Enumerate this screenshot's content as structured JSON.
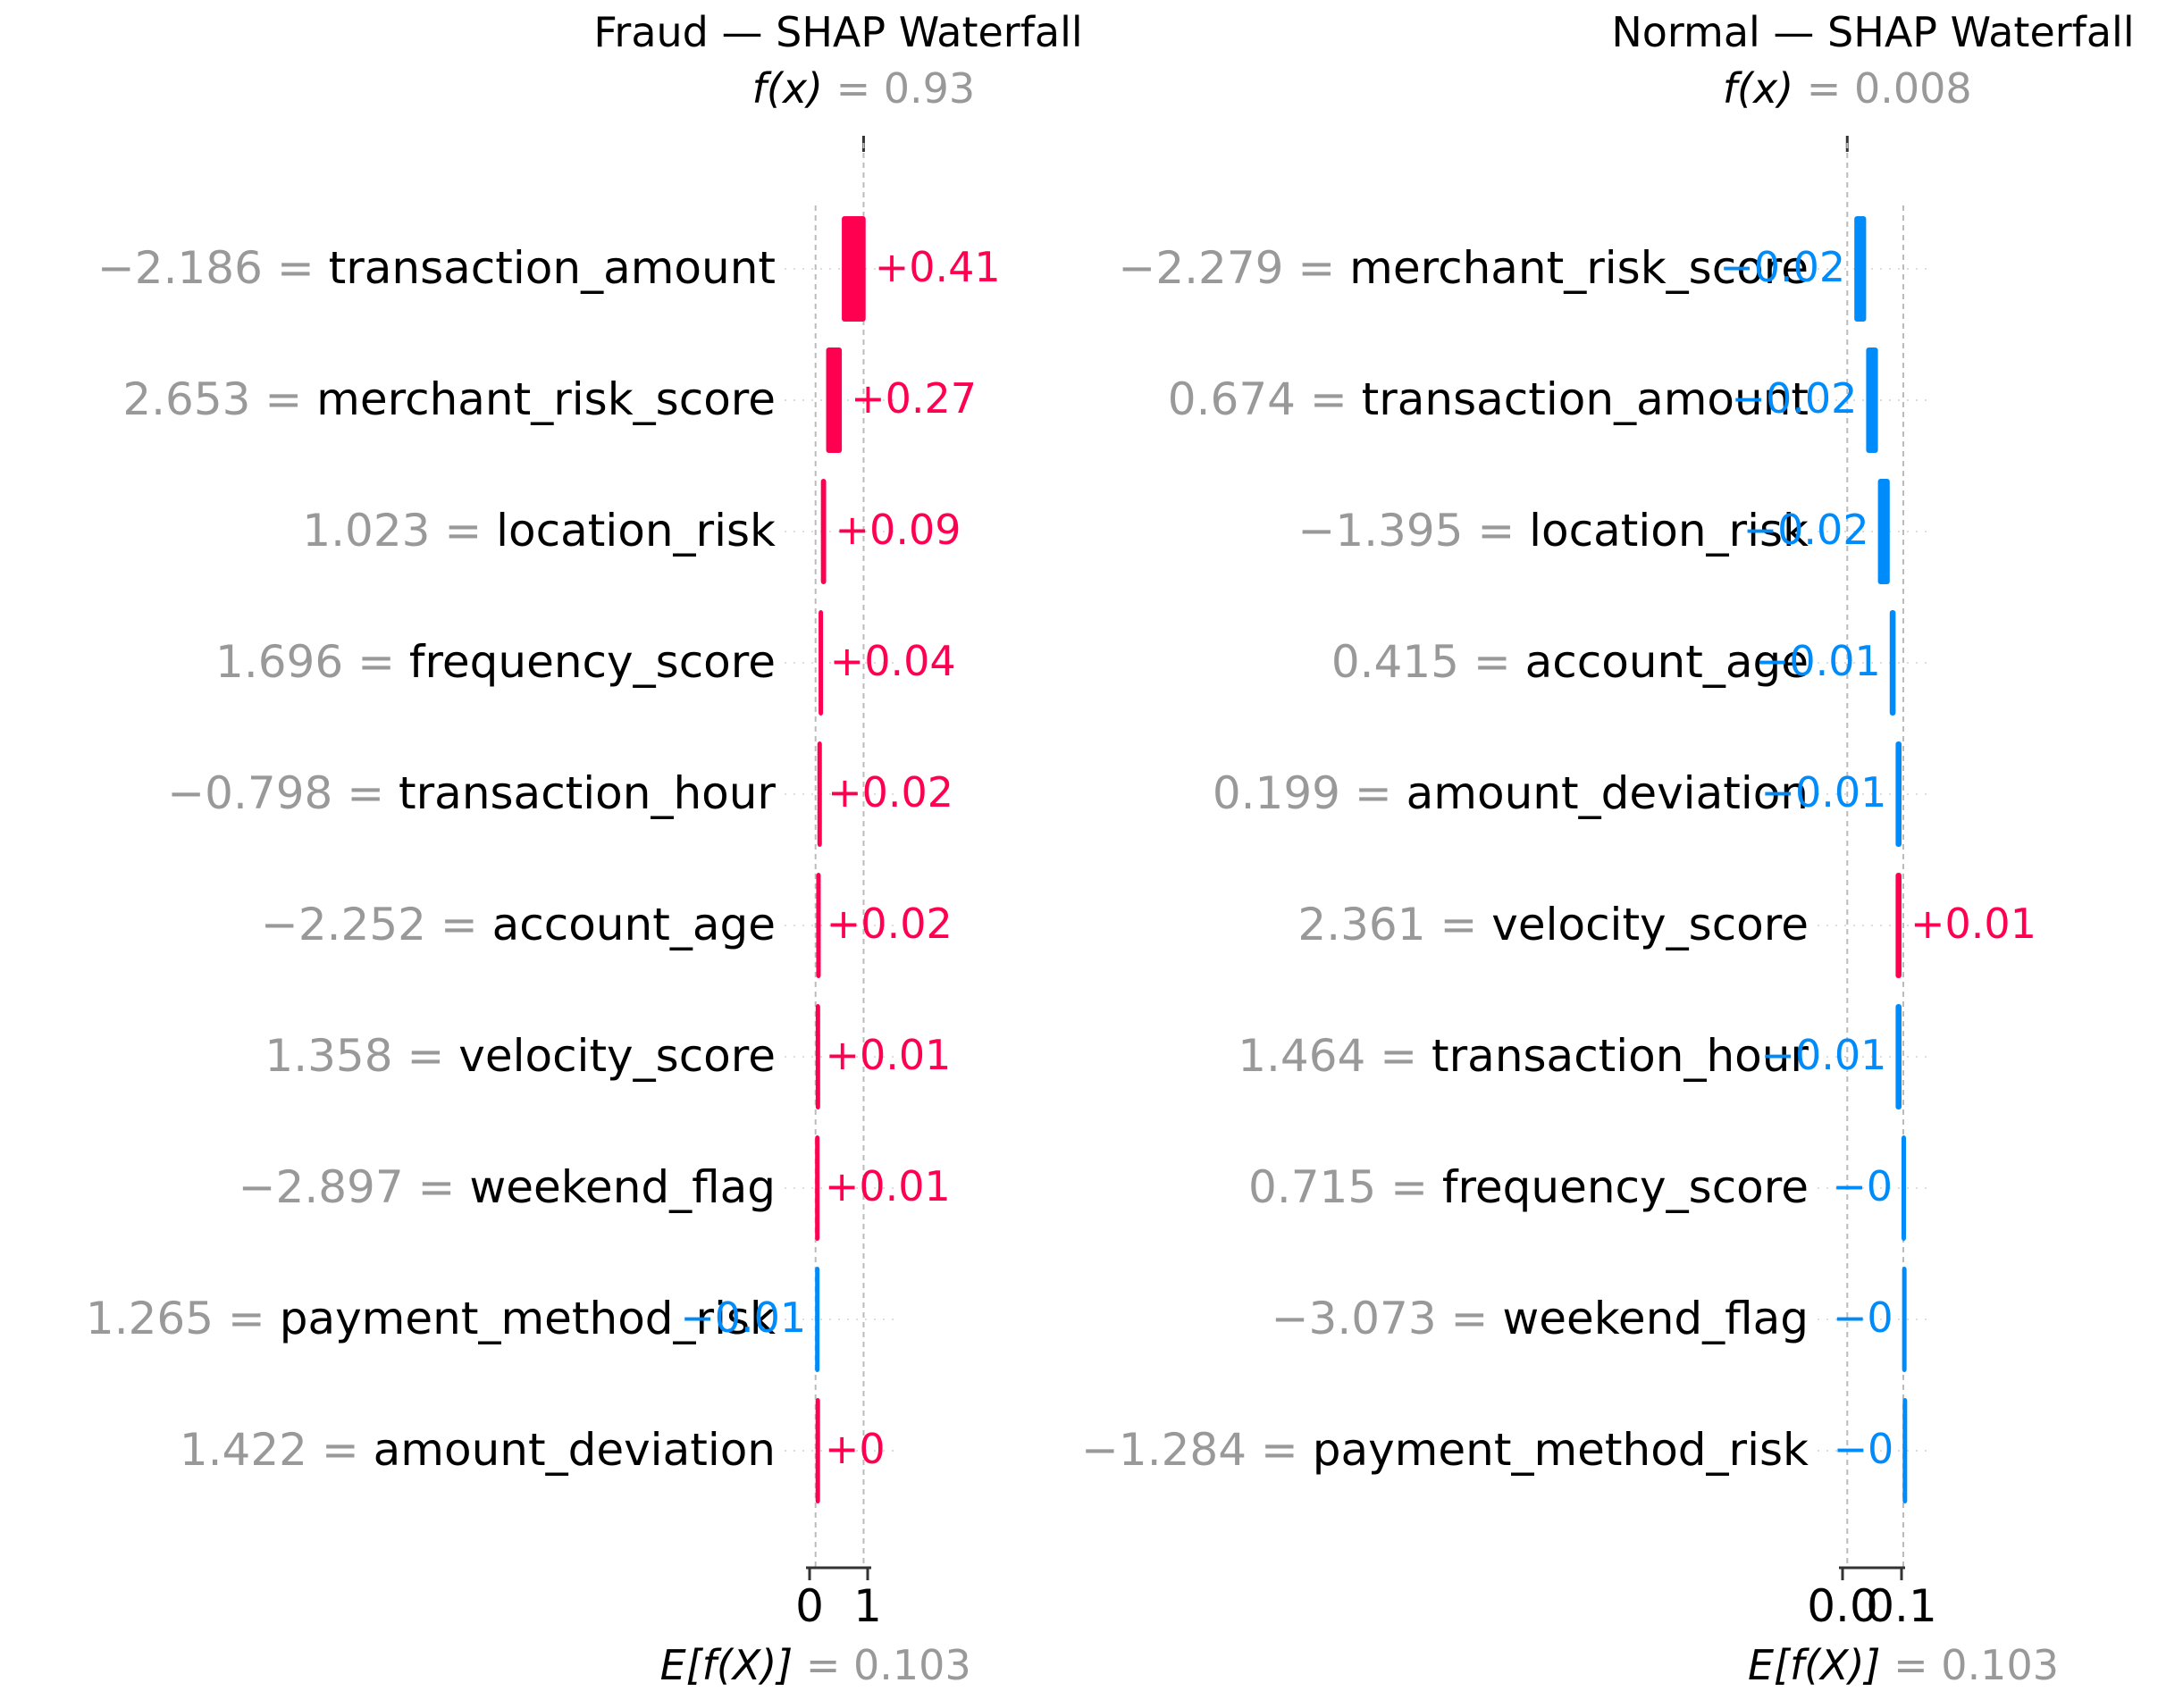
{
  "colors": {
    "positive": "#ff0051",
    "negative": "#008bfb",
    "feature_value": "#999999",
    "label": "#000000",
    "gridline": "#bbbbbb"
  },
  "chart_data": [
    {
      "type": "bar",
      "subtype": "waterfall",
      "title": "Fraud — SHAP Waterfall",
      "fx_label": "f(x)",
      "fx_value": "0.93",
      "ex_label": "E[f(X)]",
      "ex_value": "0.103",
      "base_value": 0.103,
      "output_value": 0.93,
      "xlim": [
        0,
        1
      ],
      "xtick_labels": [
        "0",
        "1"
      ],
      "xtick_values": [
        0,
        1
      ],
      "features": [
        {
          "name": "transaction_amount",
          "value": "−2.186",
          "shap": 0.41,
          "label": "+0.41"
        },
        {
          "name": "merchant_risk_score",
          "value": "2.653",
          "shap": 0.27,
          "label": "+0.27"
        },
        {
          "name": "location_risk",
          "value": "1.023",
          "shap": 0.09,
          "label": "+0.09"
        },
        {
          "name": "frequency_score",
          "value": "1.696",
          "shap": 0.04,
          "label": "+0.04"
        },
        {
          "name": "transaction_hour",
          "value": "−0.798",
          "shap": 0.02,
          "label": "+0.02"
        },
        {
          "name": "account_age",
          "value": "−2.252",
          "shap": 0.02,
          "label": "+0.02"
        },
        {
          "name": "velocity_score",
          "value": "1.358",
          "shap": 0.01,
          "label": "+0.01"
        },
        {
          "name": "weekend_flag",
          "value": "−2.897",
          "shap": 0.01,
          "label": "+0.01"
        },
        {
          "name": "payment_method_risk",
          "value": "1.265",
          "shap": -0.01,
          "label": "−0.01"
        },
        {
          "name": "amount_deviation",
          "value": "1.422",
          "shap": 0.002,
          "label": "+0"
        }
      ]
    },
    {
      "type": "bar",
      "subtype": "waterfall",
      "title": "Normal — SHAP Waterfall",
      "fx_label": "f(x)",
      "fx_value": "0.008",
      "ex_label": "E[f(X)]",
      "ex_value": "0.103",
      "base_value": 0.103,
      "output_value": 0.008,
      "xlim": [
        0,
        0.1
      ],
      "xtick_labels": [
        "0.0",
        "0.1"
      ],
      "xtick_values": [
        0,
        0.1
      ],
      "features": [
        {
          "name": "merchant_risk_score",
          "value": "−2.279",
          "shap": -0.02,
          "label": "−0.02"
        },
        {
          "name": "transaction_amount",
          "value": "0.674",
          "shap": -0.02,
          "label": "−0.02"
        },
        {
          "name": "location_risk",
          "value": "−1.395",
          "shap": -0.02,
          "label": "−0.02"
        },
        {
          "name": "account_age",
          "value": "0.415",
          "shap": -0.01,
          "label": "−0.01"
        },
        {
          "name": "amount_deviation",
          "value": "0.199",
          "shap": -0.01,
          "label": "−0.01"
        },
        {
          "name": "velocity_score",
          "value": "2.361",
          "shap": 0.01,
          "label": "+0.01"
        },
        {
          "name": "transaction_hour",
          "value": "1.464",
          "shap": -0.01,
          "label": "−0.01"
        },
        {
          "name": "frequency_score",
          "value": "0.715",
          "shap": -0.001,
          "label": "−0"
        },
        {
          "name": "weekend_flag",
          "value": "−3.073",
          "shap": -0.001,
          "label": "−0"
        },
        {
          "name": "payment_method_risk",
          "value": "−1.284",
          "shap": -0.001,
          "label": "−0"
        }
      ]
    }
  ]
}
